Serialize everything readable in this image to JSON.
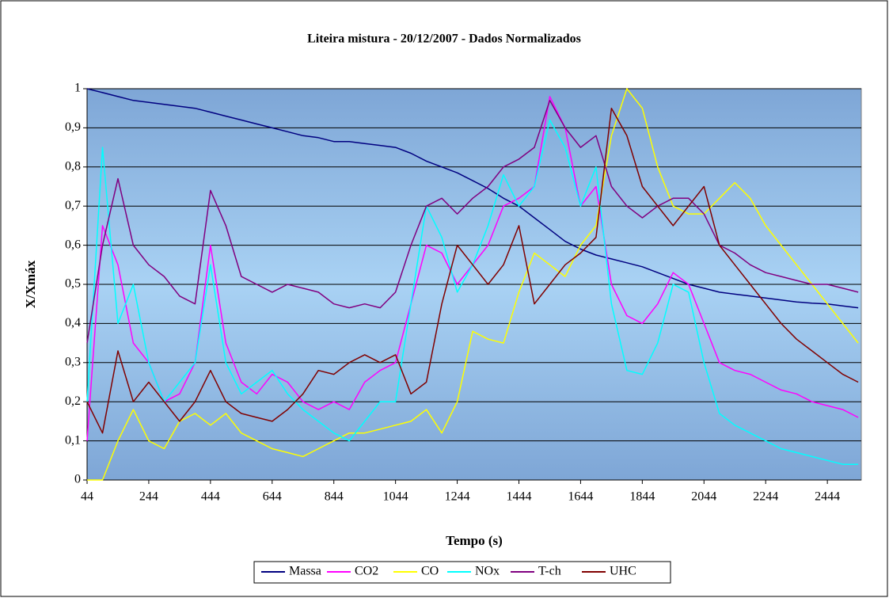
{
  "chart_data": {
    "type": "line",
    "title": "Liteira mistura  - 20/12/2007 - Dados Normalizados",
    "x_label": "Tempo (s)",
    "y_label": "X/Xmáx",
    "x": [
      44,
      94,
      144,
      194,
      244,
      294,
      344,
      394,
      444,
      494,
      544,
      594,
      644,
      694,
      744,
      794,
      844,
      894,
      944,
      994,
      1044,
      1094,
      1144,
      1194,
      1244,
      1294,
      1344,
      1394,
      1444,
      1494,
      1544,
      1594,
      1644,
      1694,
      1744,
      1794,
      1844,
      1894,
      1944,
      1994,
      2044,
      2094,
      2144,
      2194,
      2244,
      2294,
      2344,
      2394,
      2444,
      2494,
      2544
    ],
    "xlim": [
      44,
      2554
    ],
    "xticks": [
      44,
      244,
      444,
      644,
      844,
      1044,
      1244,
      1444,
      1644,
      1844,
      2044,
      2244,
      2444
    ],
    "ylim": [
      0,
      1
    ],
    "yticks": [
      0,
      {
        "value": 0.1,
        "label": "0,1"
      },
      {
        "value": 0.2,
        "label": "0,2"
      },
      {
        "value": 0.3,
        "label": "0,3"
      },
      {
        "value": 0.4,
        "label": "0,4"
      },
      {
        "value": 0.5,
        "label": "0,5"
      },
      {
        "value": 0.6,
        "label": "0,6"
      },
      {
        "value": 0.7,
        "label": "0,7"
      },
      {
        "value": 0.8,
        "label": "0,8"
      },
      {
        "value": 0.9,
        "label": "0,9"
      },
      1
    ],
    "grid": true,
    "legend": "bottom",
    "series": [
      {
        "name": "Massa",
        "color": "#000080",
        "values": [
          1,
          0.99,
          0.98,
          0.97,
          0.965,
          0.96,
          0.955,
          0.95,
          0.94,
          0.93,
          0.92,
          0.91,
          0.9,
          0.89,
          0.88,
          0.875,
          0.865,
          0.865,
          0.86,
          0.855,
          0.85,
          0.835,
          0.815,
          0.8,
          0.785,
          0.765,
          0.745,
          0.72,
          0.7,
          0.67,
          0.64,
          0.61,
          0.59,
          0.575,
          0.565,
          0.555,
          0.545,
          0.53,
          0.515,
          0.5,
          0.49,
          0.48,
          0.475,
          0.47,
          0.465,
          0.46,
          0.455,
          0.452,
          0.45,
          0.445,
          0.44
        ]
      },
      {
        "name": "CO2",
        "color": "#ff00ff",
        "values": [
          0.1,
          0.65,
          0.55,
          0.35,
          0.3,
          0.2,
          0.22,
          0.3,
          0.6,
          0.35,
          0.25,
          0.22,
          0.27,
          0.25,
          0.2,
          0.18,
          0.2,
          0.18,
          0.25,
          0.28,
          0.3,
          0.45,
          0.6,
          0.58,
          0.5,
          0.55,
          0.6,
          0.7,
          0.72,
          0.75,
          0.98,
          0.9,
          0.7,
          0.75,
          0.5,
          0.42,
          0.4,
          0.45,
          0.53,
          0.5,
          0.4,
          0.3,
          0.28,
          0.27,
          0.25,
          0.23,
          0.22,
          0.2,
          0.19,
          0.18,
          0.16
        ]
      },
      {
        "name": "CO",
        "color": "#ffff00",
        "values": [
          0,
          0,
          0.1,
          0.18,
          0.1,
          0.08,
          0.15,
          0.17,
          0.14,
          0.17,
          0.12,
          0.1,
          0.08,
          0.07,
          0.06,
          0.08,
          0.1,
          0.12,
          0.12,
          0.13,
          0.14,
          0.15,
          0.18,
          0.12,
          0.2,
          0.38,
          0.36,
          0.35,
          0.48,
          0.58,
          0.55,
          0.52,
          0.6,
          0.65,
          0.88,
          1,
          0.95,
          0.8,
          0.7,
          0.68,
          0.68,
          0.72,
          0.76,
          0.72,
          0.65,
          0.6,
          0.55,
          0.5,
          0.45,
          0.4,
          0.35
        ]
      },
      {
        "name": "NOx",
        "color": "#00ffff",
        "values": [
          0.2,
          0.85,
          0.4,
          0.5,
          0.3,
          0.2,
          0.25,
          0.3,
          0.55,
          0.3,
          0.22,
          0.25,
          0.28,
          0.22,
          0.18,
          0.15,
          0.12,
          0.1,
          0.15,
          0.2,
          0.2,
          0.45,
          0.7,
          0.62,
          0.48,
          0.55,
          0.65,
          0.78,
          0.7,
          0.75,
          0.92,
          0.85,
          0.7,
          0.8,
          0.45,
          0.28,
          0.27,
          0.35,
          0.5,
          0.48,
          0.3,
          0.17,
          0.14,
          0.12,
          0.1,
          0.08,
          0.07,
          0.06,
          0.05,
          0.04,
          0.04
        ]
      },
      {
        "name": "T-ch",
        "color": "#800080",
        "values": [
          0.35,
          0.6,
          0.77,
          0.6,
          0.55,
          0.52,
          0.47,
          0.45,
          0.74,
          0.65,
          0.52,
          0.5,
          0.48,
          0.5,
          0.49,
          0.48,
          0.45,
          0.44,
          0.45,
          0.44,
          0.48,
          0.6,
          0.7,
          0.72,
          0.68,
          0.72,
          0.75,
          0.8,
          0.82,
          0.85,
          0.97,
          0.9,
          0.85,
          0.88,
          0.75,
          0.7,
          0.67,
          0.7,
          0.72,
          0.72,
          0.68,
          0.6,
          0.58,
          0.55,
          0.53,
          0.52,
          0.51,
          0.5,
          0.5,
          0.49,
          0.48
        ]
      },
      {
        "name": "UHC",
        "color": "#800000",
        "values": [
          0.2,
          0.12,
          0.33,
          0.2,
          0.25,
          0.2,
          0.15,
          0.2,
          0.28,
          0.2,
          0.17,
          0.16,
          0.15,
          0.18,
          0.22,
          0.28,
          0.27,
          0.3,
          0.32,
          0.3,
          0.32,
          0.22,
          0.25,
          0.45,
          0.6,
          0.55,
          0.5,
          0.55,
          0.65,
          0.45,
          0.5,
          0.55,
          0.58,
          0.62,
          0.95,
          0.88,
          0.75,
          0.7,
          0.65,
          0.7,
          0.75,
          0.6,
          0.55,
          0.5,
          0.45,
          0.4,
          0.36,
          0.33,
          0.3,
          0.27,
          0.25
        ]
      }
    ]
  }
}
